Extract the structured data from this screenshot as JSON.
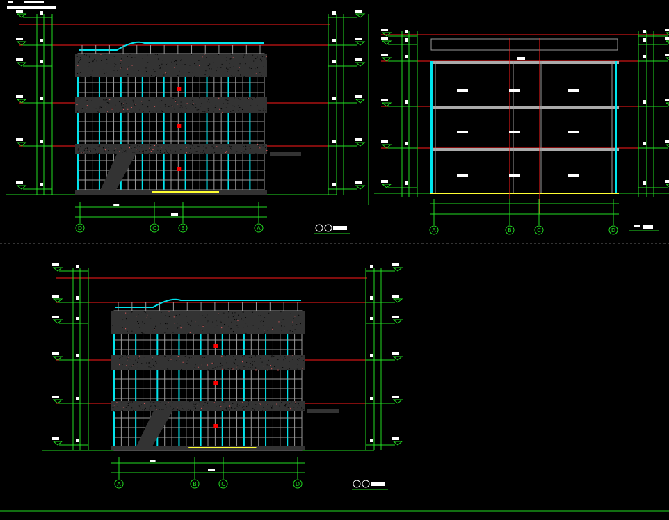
{
  "colors": {
    "background": "#000000",
    "dimension": "#22dd22",
    "level": "#ff1a1a",
    "glass": "#00e5ee",
    "frame": "#9a9a9a",
    "panel": "#333333",
    "stair": "#ffff33",
    "text": "#ffffff"
  },
  "drawings": [
    {
      "id": "elevation-d-a",
      "type": "elevation",
      "axes": [
        "D",
        "C",
        "B",
        "A"
      ]
    },
    {
      "id": "section-1-1",
      "type": "section",
      "axes": [
        "A",
        "B",
        "C",
        "D"
      ]
    },
    {
      "id": "elevation-a-d",
      "type": "elevation",
      "axes": [
        "A",
        "B",
        "C",
        "D"
      ]
    }
  ]
}
